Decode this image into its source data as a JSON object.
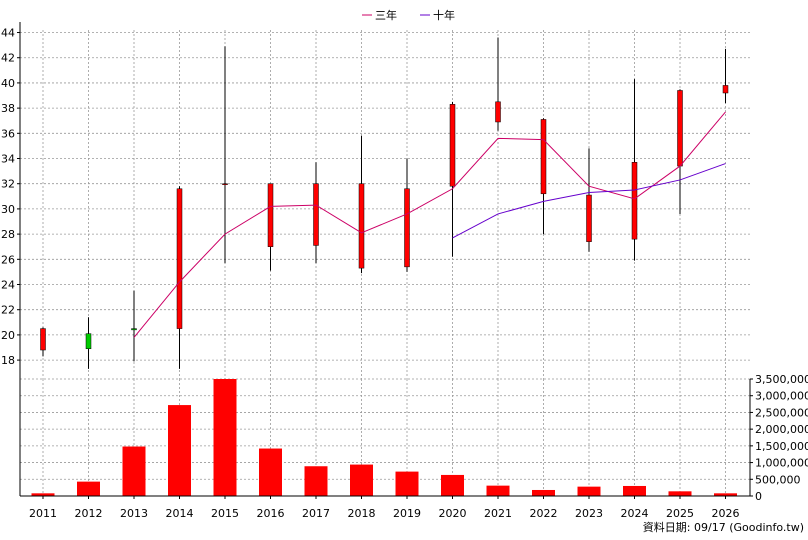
{
  "legend": [
    {
      "label": "三年",
      "color": "#cc0066"
    },
    {
      "label": "十年",
      "color": "#6600cc"
    }
  ],
  "source_note": "資料日期: 09/17 (Goodinfo.tw)",
  "colors": {
    "up": "#ff0000",
    "down": "#00cc00",
    "volume": "#ff0000",
    "grid": "#999999",
    "wick": "#000000",
    "ma3": "#cc0066",
    "ma10": "#6600cc"
  },
  "chart_data": [
    {
      "type": "candlestick",
      "grid": true,
      "ylim": [
        16.5,
        44.2
      ],
      "yticks": [
        18,
        20,
        22,
        24,
        26,
        28,
        30,
        32,
        34,
        36,
        38,
        40,
        42,
        44
      ],
      "categories": [
        "2011",
        "2012",
        "2013",
        "2014",
        "2015",
        "2016",
        "2017",
        "2018",
        "2019",
        "2020",
        "2021",
        "2022",
        "2023",
        "2024",
        "2025",
        "2026"
      ],
      "ohlc": [
        {
          "open": 18.8,
          "high": 20.6,
          "low": 18.3,
          "close": 20.5
        },
        {
          "open": 20.1,
          "high": 21.4,
          "low": 17.3,
          "close": 18.9
        },
        {
          "open": 20.5,
          "high": 23.5,
          "low": 17.9,
          "close": 20.4
        },
        {
          "open": 20.5,
          "high": 31.8,
          "low": 17.3,
          "close": 31.6
        },
        {
          "open": 32.0,
          "high": 42.9,
          "low": 25.7,
          "close": 32.0
        },
        {
          "open": 27.0,
          "high": 32.0,
          "low": 25.1,
          "close": 32.0
        },
        {
          "open": 27.1,
          "high": 33.7,
          "low": 25.7,
          "close": 32.0
        },
        {
          "open": 25.3,
          "high": 35.8,
          "low": 24.9,
          "close": 32.0
        },
        {
          "open": 25.4,
          "high": 34.0,
          "low": 25.0,
          "close": 31.6
        },
        {
          "open": 31.8,
          "high": 38.5,
          "low": 26.2,
          "close": 38.3
        },
        {
          "open": 36.9,
          "high": 43.6,
          "low": 36.2,
          "close": 38.5
        },
        {
          "open": 31.2,
          "high": 37.2,
          "low": 28.0,
          "close": 37.1
        },
        {
          "open": 27.4,
          "high": 34.8,
          "low": 26.6,
          "close": 31.1
        },
        {
          "open": 27.6,
          "high": 40.3,
          "low": 25.9,
          "close": 33.7
        },
        {
          "open": 33.4,
          "high": 39.5,
          "low": 29.6,
          "close": 39.4
        },
        {
          "open": 39.2,
          "high": 42.7,
          "low": 38.4,
          "close": 39.8
        }
      ],
      "series": [
        {
          "name": "三年",
          "values": [
            null,
            null,
            19.8,
            24.2,
            28.0,
            30.2,
            30.3,
            28.1,
            29.6,
            31.6,
            35.6,
            35.5,
            31.8,
            30.8,
            33.4,
            37.7
          ]
        },
        {
          "name": "十年",
          "values": [
            null,
            null,
            null,
            null,
            null,
            null,
            null,
            null,
            null,
            27.7,
            29.6,
            30.6,
            31.3,
            31.5,
            32.3,
            33.6
          ]
        }
      ]
    },
    {
      "type": "bar",
      "grid": true,
      "ylim": [
        0,
        3500000
      ],
      "yticks": [
        0,
        500000,
        1000000,
        1500000,
        2000000,
        2500000,
        3000000,
        3500000
      ],
      "ytick_labels": [
        "0",
        "500,000",
        "1,000,000",
        "1,500,000",
        "2,000,000",
        "2,500,000",
        "3,000,000",
        "3,500,000"
      ],
      "categories": [
        "2011",
        "2012",
        "2013",
        "2014",
        "2015",
        "2016",
        "2017",
        "2018",
        "2019",
        "2020",
        "2021",
        "2022",
        "2023",
        "2024",
        "2025",
        "2026"
      ],
      "values": [
        80000,
        430000,
        1480000,
        2720000,
        3500000,
        1420000,
        890000,
        940000,
        730000,
        630000,
        310000,
        180000,
        280000,
        300000,
        140000,
        80000
      ]
    }
  ]
}
